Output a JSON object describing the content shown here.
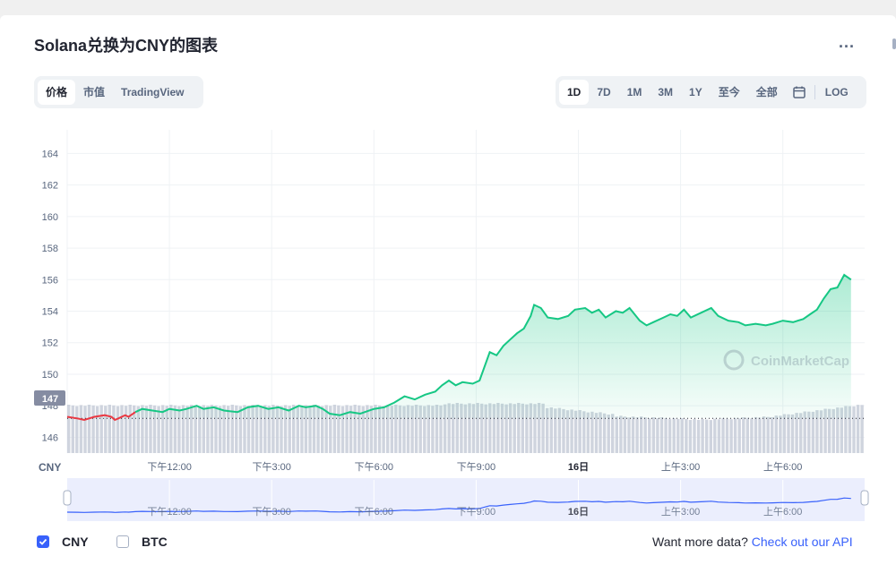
{
  "header": {
    "title": "Solana兑换为CNY的图表",
    "more_label": "..."
  },
  "tabs_left": [
    {
      "label": "价格",
      "active": true
    },
    {
      "label": "市值",
      "active": false
    },
    {
      "label": "TradingView",
      "active": false
    }
  ],
  "tabs_right": [
    {
      "label": "1D",
      "active": true
    },
    {
      "label": "7D",
      "active": false
    },
    {
      "label": "1M",
      "active": false
    },
    {
      "label": "3M",
      "active": false
    },
    {
      "label": "1Y",
      "active": false
    },
    {
      "label": "至今",
      "active": false
    },
    {
      "label": "全部",
      "active": false
    }
  ],
  "calendar_icon": "calendar-icon",
  "log_label": "LOG",
  "watermark": "CoinMarketCap",
  "current_price_label": "147",
  "currency_label": "CNY",
  "legend": [
    {
      "label": "CNY",
      "checked": true
    },
    {
      "label": "BTC",
      "checked": false
    }
  ],
  "api_text": "Want more data?",
  "api_link": "Check out our API",
  "colors": {
    "up": "#16c784",
    "down": "#ea3943",
    "accent": "#3861fb",
    "navigator": "#dde3fb"
  },
  "chart_data": {
    "type": "area",
    "ylim": [
      145,
      165.5
    ],
    "yticks": [
      164,
      162,
      160,
      158,
      156,
      154,
      152,
      150,
      148,
      146
    ],
    "reference_value": 147.2,
    "xticks": [
      {
        "label": "下午12:00",
        "x": 3
      },
      {
        "label": "下午3:00",
        "x": 6
      },
      {
        "label": "下午6:00",
        "x": 9
      },
      {
        "label": "下午9:00",
        "x": 12
      },
      {
        "label": "16日",
        "x": 15
      },
      {
        "label": "上午3:00",
        "x": 18
      },
      {
        "label": "上午6:00",
        "x": 21
      }
    ],
    "xlim": [
      0,
      23.4
    ],
    "series": [
      {
        "points": [
          [
            0,
            147.3
          ],
          [
            0.3,
            147.2
          ],
          [
            0.5,
            147.1
          ],
          [
            0.8,
            147.3
          ],
          [
            1.1,
            147.4
          ],
          [
            1.3,
            147.3
          ],
          [
            1.4,
            147.1
          ],
          [
            1.5,
            147.2
          ],
          [
            1.7,
            147.4
          ],
          [
            1.8,
            147.3
          ],
          [
            2.0,
            147.6
          ],
          [
            2.2,
            147.8
          ],
          [
            2.5,
            147.7
          ],
          [
            2.8,
            147.6
          ],
          [
            3.0,
            147.8
          ],
          [
            3.3,
            147.7
          ],
          [
            3.5,
            147.8
          ],
          [
            3.8,
            148.0
          ],
          [
            4.0,
            147.8
          ],
          [
            4.3,
            147.9
          ],
          [
            4.6,
            147.7
          ],
          [
            5.0,
            147.6
          ],
          [
            5.3,
            147.9
          ],
          [
            5.6,
            148.0
          ],
          [
            5.9,
            147.8
          ],
          [
            6.2,
            147.9
          ],
          [
            6.5,
            147.7
          ],
          [
            6.8,
            148.0
          ],
          [
            7.0,
            147.9
          ],
          [
            7.3,
            148.0
          ],
          [
            7.5,
            147.8
          ],
          [
            7.7,
            147.5
          ],
          [
            8.0,
            147.4
          ],
          [
            8.3,
            147.6
          ],
          [
            8.6,
            147.5
          ],
          [
            9.0,
            147.8
          ],
          [
            9.3,
            147.9
          ],
          [
            9.6,
            148.2
          ],
          [
            9.9,
            148.6
          ],
          [
            10.2,
            148.4
          ],
          [
            10.5,
            148.7
          ],
          [
            10.8,
            148.9
          ],
          [
            11.0,
            149.3
          ],
          [
            11.2,
            149.6
          ],
          [
            11.4,
            149.3
          ],
          [
            11.6,
            149.5
          ],
          [
            11.9,
            149.4
          ],
          [
            12.1,
            149.6
          ],
          [
            12.3,
            150.8
          ],
          [
            12.4,
            151.4
          ],
          [
            12.6,
            151.2
          ],
          [
            12.8,
            151.8
          ],
          [
            13.0,
            152.2
          ],
          [
            13.2,
            152.6
          ],
          [
            13.4,
            152.9
          ],
          [
            13.6,
            153.7
          ],
          [
            13.7,
            154.4
          ],
          [
            13.9,
            154.2
          ],
          [
            14.1,
            153.6
          ],
          [
            14.4,
            153.5
          ],
          [
            14.7,
            153.7
          ],
          [
            14.9,
            154.1
          ],
          [
            15.2,
            154.2
          ],
          [
            15.4,
            153.9
          ],
          [
            15.6,
            154.1
          ],
          [
            15.8,
            153.6
          ],
          [
            16.1,
            154.0
          ],
          [
            16.3,
            153.9
          ],
          [
            16.5,
            154.2
          ],
          [
            16.8,
            153.4
          ],
          [
            17.0,
            153.1
          ],
          [
            17.2,
            153.3
          ],
          [
            17.5,
            153.6
          ],
          [
            17.7,
            153.8
          ],
          [
            17.9,
            153.7
          ],
          [
            18.1,
            154.1
          ],
          [
            18.3,
            153.6
          ],
          [
            18.6,
            153.9
          ],
          [
            18.9,
            154.2
          ],
          [
            19.1,
            153.7
          ],
          [
            19.4,
            153.4
          ],
          [
            19.7,
            153.3
          ],
          [
            19.9,
            153.1
          ],
          [
            20.2,
            153.2
          ],
          [
            20.5,
            153.1
          ],
          [
            20.7,
            153.2
          ],
          [
            21.0,
            153.4
          ],
          [
            21.3,
            153.3
          ],
          [
            21.6,
            153.5
          ],
          [
            21.8,
            153.8
          ],
          [
            22.0,
            154.1
          ],
          [
            22.2,
            154.8
          ],
          [
            22.4,
            155.4
          ],
          [
            22.6,
            155.5
          ],
          [
            22.8,
            156.3
          ],
          [
            23.0,
            156.0
          ]
        ]
      }
    ]
  }
}
